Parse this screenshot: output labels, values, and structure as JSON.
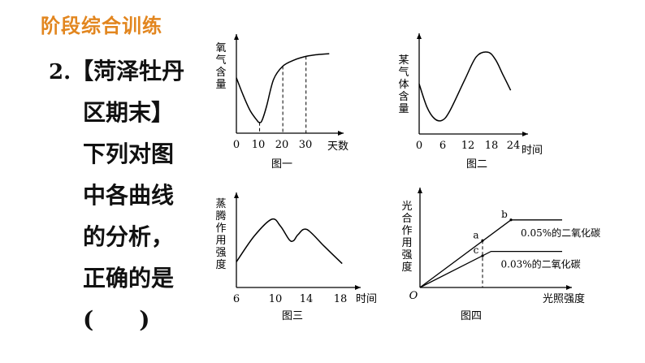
{
  "header": {
    "title": "阶段综合训练"
  },
  "question": {
    "number": "2.",
    "lines": [
      "【菏泽牡丹",
      "区期末】",
      "下列对图",
      "中各曲线",
      "的分析，",
      "正确的是",
      "(　　)"
    ]
  },
  "chart_data": [
    {
      "type": "line",
      "title": "图一",
      "ylabel": "氧气含量",
      "xlabel": "天数",
      "x_ticks": [
        "0",
        "10",
        "20",
        "30"
      ],
      "x": [
        0,
        3,
        6,
        9,
        10,
        11,
        13,
        16,
        20,
        25,
        30,
        35,
        40
      ],
      "y": [
        0.62,
        0.42,
        0.25,
        0.14,
        0.12,
        0.14,
        0.3,
        0.6,
        0.75,
        0.82,
        0.86,
        0.88,
        0.89
      ],
      "dashed_guides_x": [
        10,
        20,
        30
      ],
      "xlim": [
        0,
        42
      ],
      "ylim": [
        0,
        1
      ]
    },
    {
      "type": "line",
      "title": "图二",
      "ylabel": "某气体含量",
      "xlabel": "时间",
      "x_ticks": [
        "0",
        "6",
        "12",
        "18",
        "24"
      ],
      "x": [
        0,
        2,
        4,
        6,
        8,
        12,
        15,
        18,
        20,
        22,
        24
      ],
      "y": [
        0.55,
        0.3,
        0.17,
        0.15,
        0.25,
        0.6,
        0.85,
        0.9,
        0.82,
        0.65,
        0.48
      ],
      "xlim": [
        0,
        26
      ],
      "ylim": [
        0,
        1
      ]
    },
    {
      "type": "line",
      "title": "图三",
      "ylabel": "蒸腾作用强度",
      "xlabel": "时间",
      "x_ticks": [
        "6",
        "10",
        "14",
        "18"
      ],
      "x": [
        6,
        8,
        10,
        11,
        12,
        12.5,
        13,
        14,
        16,
        18
      ],
      "y": [
        0.3,
        0.6,
        0.8,
        0.72,
        0.56,
        0.55,
        0.62,
        0.68,
        0.48,
        0.28
      ],
      "xlim": [
        6,
        19
      ],
      "ylim": [
        0,
        1
      ]
    },
    {
      "type": "line",
      "title": "图四",
      "ylabel": "光合作用强度",
      "xlabel": "光照强度",
      "origin_label": "O",
      "series": [
        {
          "name": "0.05%的二氧化碳",
          "x": [
            0,
            0.64,
            1.0
          ],
          "y": [
            0,
            0.75,
            0.75
          ]
        },
        {
          "name": "0.03%的二氧化碳",
          "x": [
            0,
            0.5,
            1.0
          ],
          "y": [
            0,
            0.4,
            0.4
          ]
        }
      ],
      "points": [
        {
          "label": "a",
          "x": 0.44,
          "y": 0.52
        },
        {
          "label": "b",
          "x": 0.64,
          "y": 0.75
        },
        {
          "label": "c",
          "x": 0.44,
          "y": 0.35
        }
      ],
      "dashed_guide_x": 0.44,
      "xlim": [
        0,
        1
      ],
      "ylim": [
        0,
        1
      ]
    }
  ]
}
